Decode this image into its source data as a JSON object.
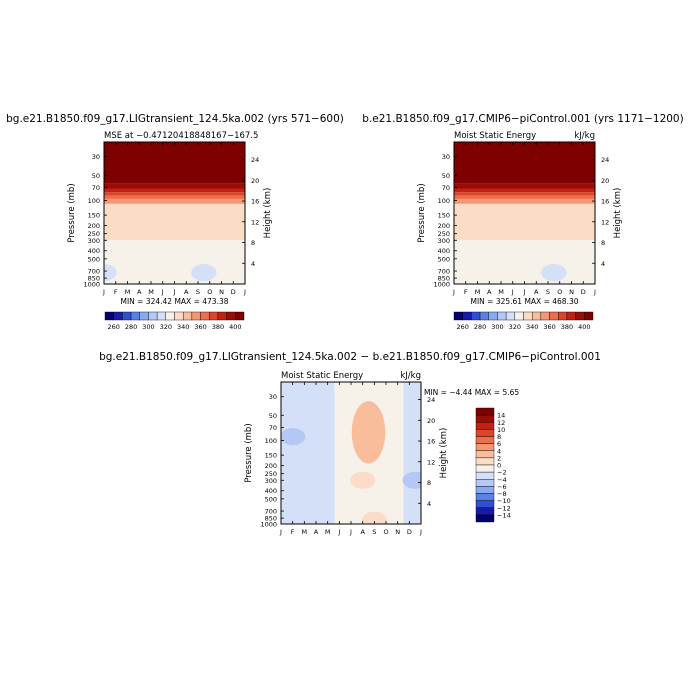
{
  "chart_data": [
    {
      "type": "heatmap",
      "title": "bg.e21.B1850.f09_g17.LIGtransient_124.5ka.002 (yrs 571−600)",
      "subtitle_left": "MSE at −0.47120418848167−167.5",
      "subtitle_right": "",
      "xlabel": "",
      "ylabel": "Pressure (mb)",
      "ylabel_right": "Height (km)",
      "x_ticks": [
        "J",
        "F",
        "M",
        "A",
        "M",
        "J",
        "J",
        "A",
        "S",
        "O",
        "N",
        "D",
        "J"
      ],
      "y_ticks": [
        30,
        50,
        70,
        100,
        150,
        200,
        250,
        300,
        400,
        500,
        700,
        850,
        1000
      ],
      "y_scale": "log",
      "ylim": [
        1000,
        20
      ],
      "height_ticks_km": [
        4,
        8,
        12,
        16,
        20,
        24
      ],
      "stats": "MIN = 324.42  MAX = 473.38",
      "colorbar": {
        "labels": [
          "260",
          "280",
          "300",
          "320",
          "340",
          "360",
          "380",
          "400"
        ],
        "colors": [
          "#03036e",
          "#1a1aa8",
          "#2e4fd6",
          "#5a82e6",
          "#8aaaf0",
          "#b5c8f5",
          "#d3e0f7",
          "#f6f2ea",
          "#fbdcc6",
          "#f9bd9c",
          "#f59771",
          "#ec6e4c",
          "#dc4529",
          "#c0230f",
          "#980d08",
          "#7f0000"
        ]
      },
      "bands": [
        {
          "top_mb": 20,
          "bottom_mb": 62,
          "color": "#7f0000"
        },
        {
          "top_mb": 62,
          "bottom_mb": 72,
          "color": "#980d08"
        },
        {
          "top_mb": 72,
          "bottom_mb": 80,
          "color": "#c0230f"
        },
        {
          "top_mb": 80,
          "bottom_mb": 88,
          "color": "#dc4529"
        },
        {
          "top_mb": 88,
          "bottom_mb": 96,
          "color": "#ec6e4c"
        },
        {
          "top_mb": 96,
          "bottom_mb": 110,
          "color": "#f59771"
        },
        {
          "top_mb": 110,
          "bottom_mb": 300,
          "color": "#fbdcc6"
        },
        {
          "top_mb": 300,
          "bottom_mb": 1000,
          "color": "#f6f2ea"
        }
      ],
      "anomalies": [
        {
          "month": 0.0,
          "pressure_mb": 730,
          "label": "cool",
          "color": "#d3e0f7"
        },
        {
          "month": 8.5,
          "pressure_mb": 730,
          "label": "cool",
          "color": "#d3e0f7"
        }
      ]
    },
    {
      "type": "heatmap",
      "title": "b.e21.B1850.f09_g17.CMIP6−piControl.001 (yrs 1171−1200)",
      "subtitle_left": "Moist Static Energy",
      "subtitle_right": "kJ/kg",
      "xlabel": "",
      "ylabel": "Pressure (mb)",
      "ylabel_right": "Height (km)",
      "x_ticks": [
        "J",
        "F",
        "M",
        "A",
        "M",
        "J",
        "J",
        "A",
        "S",
        "O",
        "N",
        "D",
        "J"
      ],
      "y_ticks": [
        30,
        50,
        70,
        100,
        150,
        200,
        250,
        300,
        400,
        500,
        700,
        850,
        1000
      ],
      "y_scale": "log",
      "ylim": [
        1000,
        20
      ],
      "height_ticks_km": [
        4,
        8,
        12,
        16,
        20,
        24
      ],
      "stats": "MIN = 325.61  MAX = 468.30",
      "colorbar": {
        "labels": [
          "260",
          "280",
          "300",
          "320",
          "340",
          "360",
          "380",
          "400"
        ],
        "colors": [
          "#03036e",
          "#1a1aa8",
          "#2e4fd6",
          "#5a82e6",
          "#8aaaf0",
          "#b5c8f5",
          "#d3e0f7",
          "#f6f2ea",
          "#fbdcc6",
          "#f9bd9c",
          "#f59771",
          "#ec6e4c",
          "#dc4529",
          "#c0230f",
          "#980d08",
          "#7f0000"
        ]
      },
      "bands": [
        {
          "top_mb": 20,
          "bottom_mb": 62,
          "color": "#7f0000"
        },
        {
          "top_mb": 62,
          "bottom_mb": 72,
          "color": "#980d08"
        },
        {
          "top_mb": 72,
          "bottom_mb": 80,
          "color": "#c0230f"
        },
        {
          "top_mb": 80,
          "bottom_mb": 88,
          "color": "#dc4529"
        },
        {
          "top_mb": 88,
          "bottom_mb": 96,
          "color": "#ec6e4c"
        },
        {
          "top_mb": 96,
          "bottom_mb": 110,
          "color": "#f59771"
        },
        {
          "top_mb": 110,
          "bottom_mb": 300,
          "color": "#fbdcc6"
        },
        {
          "top_mb": 300,
          "bottom_mb": 1000,
          "color": "#f6f2ea"
        }
      ],
      "anomalies": [
        {
          "month": 8.5,
          "pressure_mb": 730,
          "label": "cool",
          "color": "#d3e0f7"
        }
      ]
    },
    {
      "type": "heatmap",
      "title": "bg.e21.B1850.f09_g17.LIGtransient_124.5ka.002 − b.e21.B1850.f09_g17.CMIP6−piControl.001",
      "subtitle_left": "Moist Static Energy",
      "subtitle_right": "kJ/kg",
      "xlabel": "",
      "ylabel": "Pressure (mb)",
      "ylabel_right": "Height (km)",
      "x_ticks": [
        "J",
        "F",
        "M",
        "A",
        "M",
        "J",
        "J",
        "A",
        "S",
        "O",
        "N",
        "D",
        "J"
      ],
      "y_ticks": [
        30,
        50,
        70,
        100,
        150,
        200,
        250,
        300,
        400,
        500,
        700,
        850,
        1000
      ],
      "y_scale": "log",
      "ylim": [
        1000,
        20
      ],
      "height_ticks_km": [
        4,
        8,
        12,
        16,
        20,
        24
      ],
      "stats": "MIN =  −4.44  MAX =   5.65",
      "colorbar": {
        "labels": [
          "14",
          "12",
          "10",
          "8",
          "6",
          "4",
          "2",
          "0",
          "−2",
          "−4",
          "−6",
          "−8",
          "−10",
          "−12",
          "−14"
        ],
        "colors": [
          "#7f0000",
          "#980d08",
          "#c0230f",
          "#dc4529",
          "#ec6e4c",
          "#f59771",
          "#f9bd9c",
          "#fbdcc6",
          "#f6f2ea",
          "#d3e0f7",
          "#b5c8f5",
          "#8aaaf0",
          "#5a82e6",
          "#2e4fd6",
          "#1a1aa8",
          "#03036e"
        ]
      },
      "regions": [
        {
          "month_from": 0.0,
          "month_to": 4.6,
          "value": -1,
          "color": "#d3e0f7"
        },
        {
          "month_from": 4.6,
          "month_to": 10.5,
          "value": 1,
          "color": "#f6f2ea"
        },
        {
          "month_from": 10.5,
          "month_to": 12.0,
          "value": -1,
          "color": "#d3e0f7"
        }
      ],
      "anomalies": [
        {
          "month": 1.0,
          "pressure_mb": 90,
          "label": "negative",
          "color": "#b5c8f5"
        },
        {
          "month": 7.5,
          "pressure_mb": 80,
          "label": "positive core",
          "color": "#f9bd9c"
        },
        {
          "month": 7.0,
          "pressure_mb": 300,
          "label": "positive",
          "color": "#fbdcc6"
        },
        {
          "month": 8.0,
          "pressure_mb": 900,
          "label": "positive",
          "color": "#fbdcc6"
        },
        {
          "month": 11.5,
          "pressure_mb": 300,
          "label": "negative",
          "color": "#b5c8f5"
        }
      ]
    }
  ]
}
